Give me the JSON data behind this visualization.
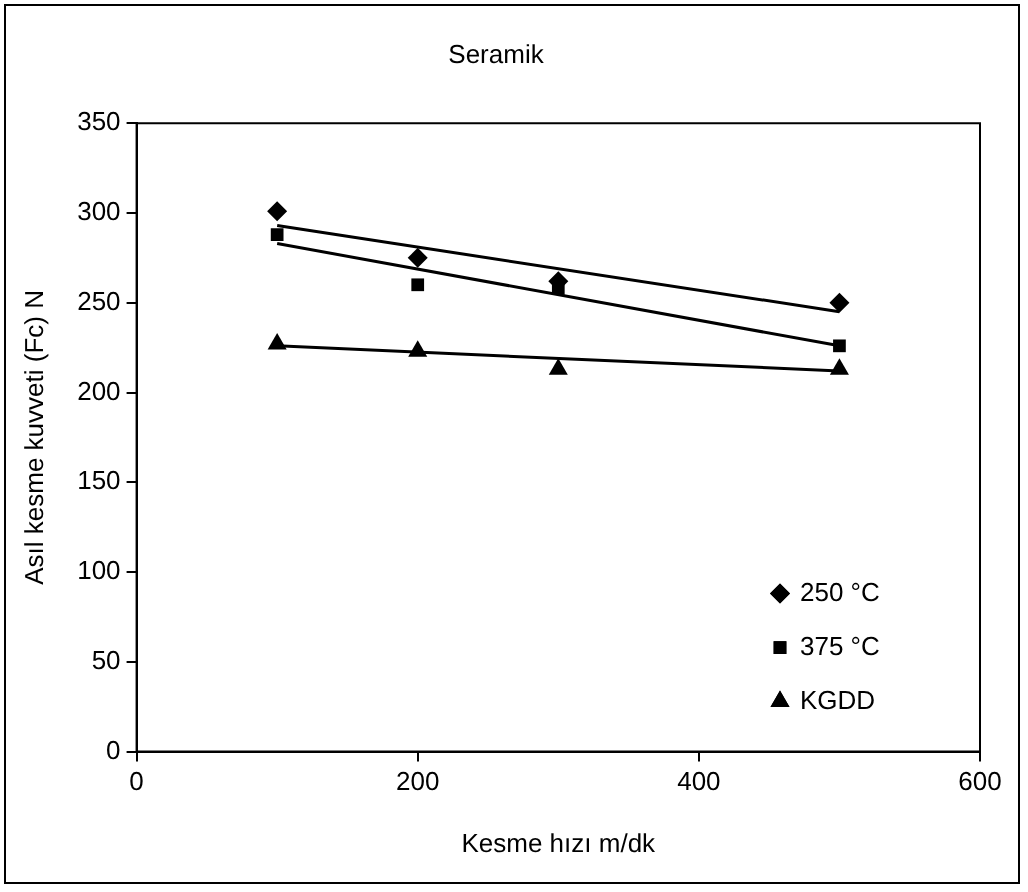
{
  "chart_data": {
    "type": "scatter",
    "title": "Seramik",
    "xlabel": "Kesme hızı m/dk",
    "ylabel": "Asıl kesme kuvveti (Fc) N",
    "xlim": [
      0,
      600
    ],
    "xticks": [
      0,
      200,
      400,
      600
    ],
    "ylim": [
      0,
      350
    ],
    "yticks": [
      0,
      50,
      100,
      150,
      200,
      250,
      300,
      350
    ],
    "grid": false,
    "legend": "bottom right",
    "series": [
      {
        "name": "250 °C",
        "color": "#000000",
        "marker": "diamond",
        "x": [
          100,
          200,
          300,
          500
        ],
        "values": [
          301,
          275,
          262,
          250
        ]
      },
      {
        "name": "375 °C",
        "color": "#000000",
        "marker": "square",
        "x": [
          100,
          200,
          300,
          500
        ],
        "values": [
          288,
          260,
          258,
          226
        ]
      },
      {
        "name": "KGDD",
        "color": "#000000",
        "marker": "triangle",
        "x": [
          100,
          200,
          300,
          500
        ],
        "values": [
          227,
          223,
          213,
          213
        ]
      },
      {
        "type": "line",
        "color": "#000000",
        "marker": "none",
        "x": [
          100,
          500
        ],
        "values": [
          293,
          245
        ]
      },
      {
        "type": "line",
        "color": "#000000",
        "marker": "none",
        "x": [
          100,
          500
        ],
        "values": [
          283,
          226
        ]
      },
      {
        "type": "line",
        "color": "#000000",
        "marker": "none",
        "x": [
          100,
          500
        ],
        "values": [
          226,
          212
        ]
      }
    ]
  }
}
